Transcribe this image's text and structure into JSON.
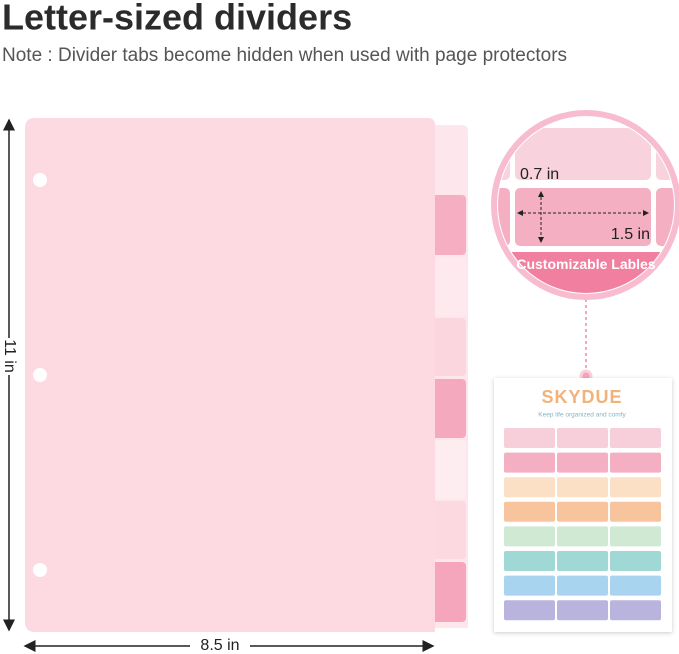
{
  "header": {
    "title": "Letter-sized dividers",
    "note": "Note : Divider tabs become hidden when used with page protectors"
  },
  "dimensions": {
    "height": "11 in",
    "width": "8.5 in"
  },
  "label_callout": {
    "label_height": "0.7 in",
    "label_width": "1.5 in",
    "caption": "Customizable Lables"
  },
  "label_sheet": {
    "brand": "SKYDUE",
    "tagline": "Keep life organized and comfy"
  }
}
